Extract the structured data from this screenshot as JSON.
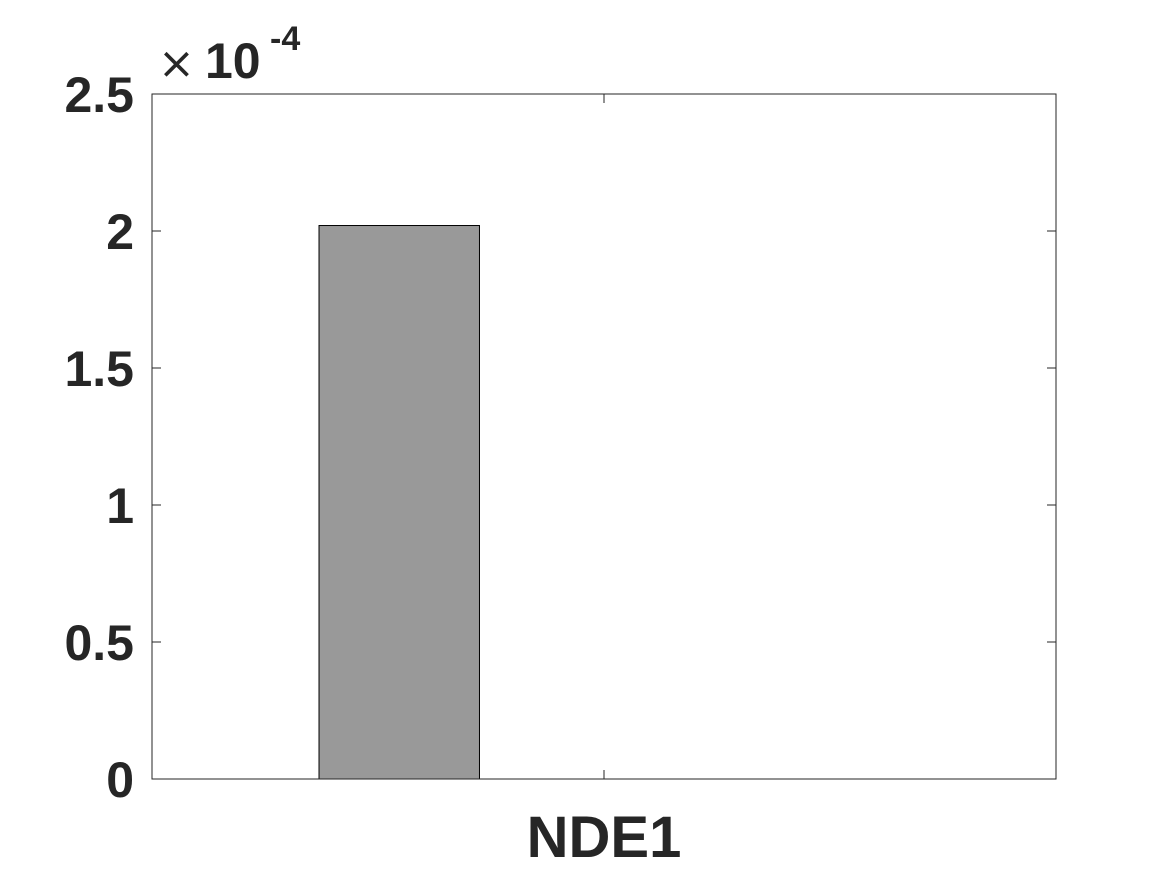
{
  "chart_data": {
    "type": "bar",
    "categories": [
      "NDE1"
    ],
    "series": [
      {
        "values": [
          0.000202
        ],
        "color": "#999999"
      }
    ],
    "title": "",
    "xlabel": "",
    "ylabel": "",
    "ylim": [
      0,
      0.00025
    ],
    "yticks": [
      0,
      5e-05,
      0.0001,
      0.00015,
      0.0002,
      0.00025
    ],
    "ytick_labels": [
      "0",
      "0.5",
      "1",
      "1.5",
      "2",
      "2.5"
    ],
    "y_multiplier": {
      "times": "×",
      "base": "10",
      "exponent": "-4"
    },
    "xlim": [
      0,
      2
    ],
    "grid": false,
    "legend": "none"
  }
}
